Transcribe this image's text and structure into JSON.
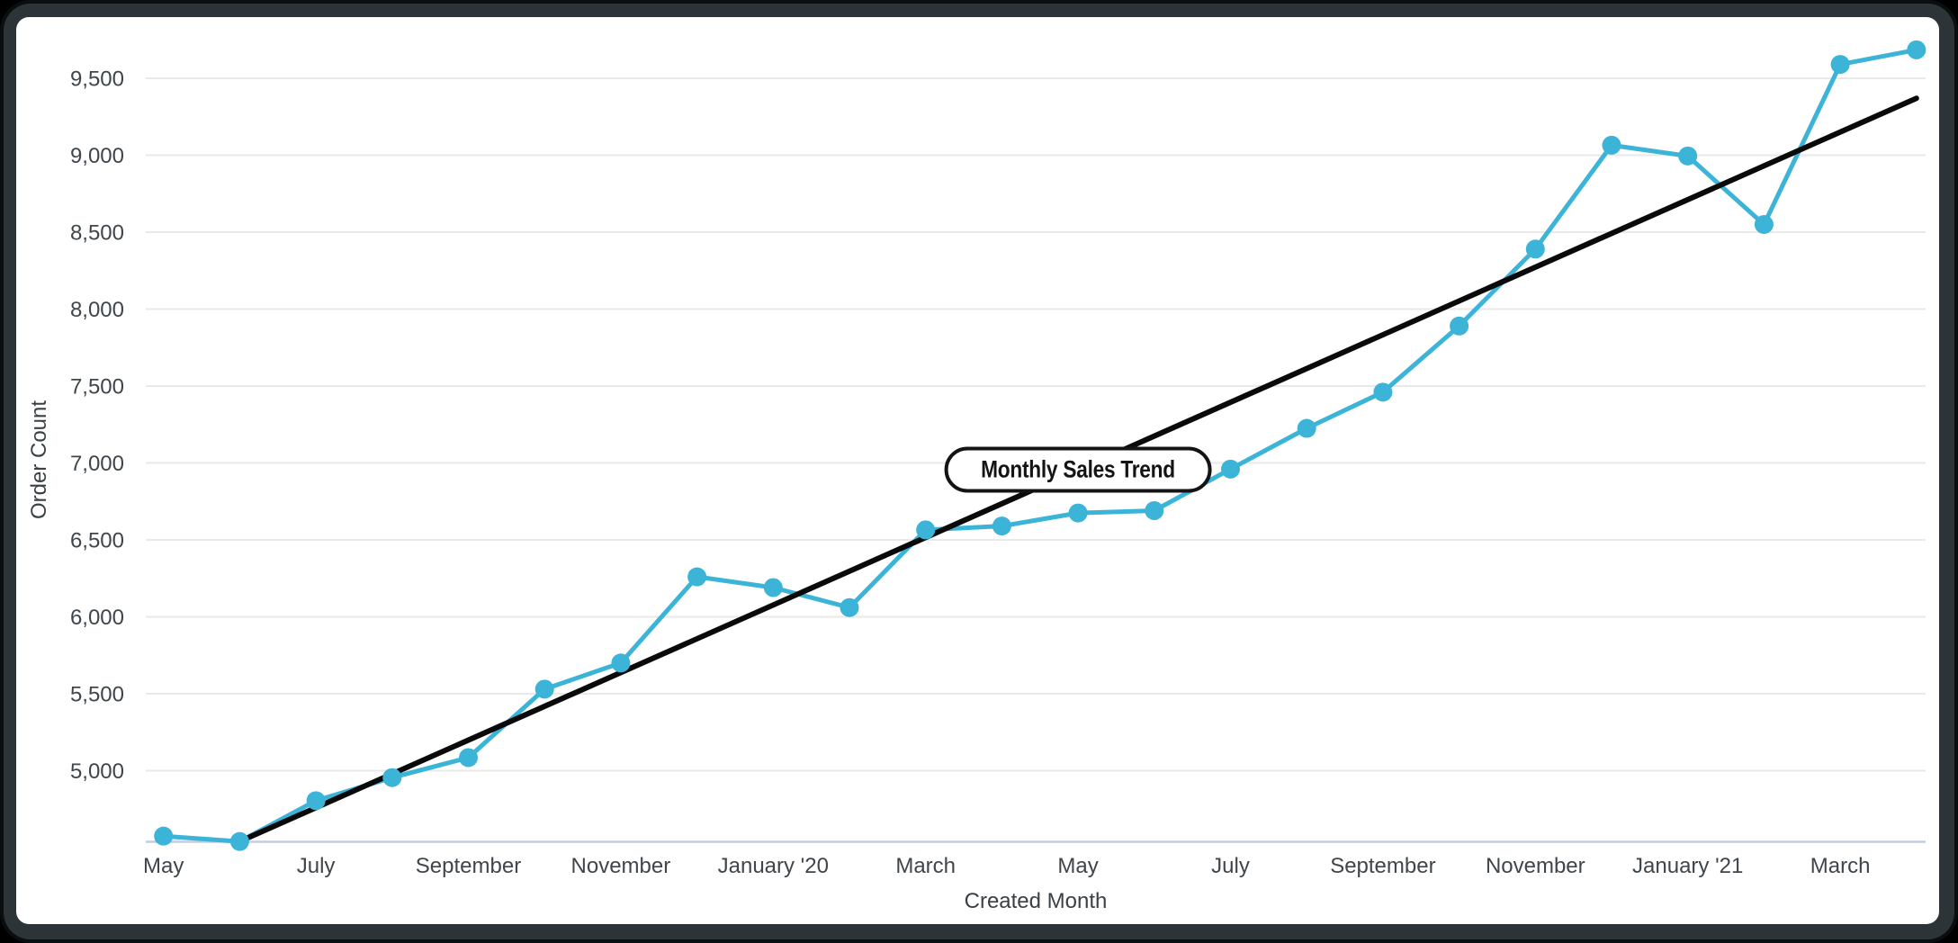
{
  "colors": {
    "series": "#3cb4d8",
    "trend": "#0a0a0a",
    "gridline": "#e9e9e9",
    "axis_baseline": "#c6cbe0",
    "tick_text": "#3f464b",
    "frame": "#2c3437",
    "card_bg": "#ffffff"
  },
  "chart_data": {
    "type": "line",
    "title": "Monthly Sales Trend",
    "xlabel": "Created Month",
    "ylabel": "Order Count",
    "annotation": "Monthly Sales Trend",
    "legend": "none",
    "grid": "horizontal",
    "ylim": [
      4540,
      9750
    ],
    "categories": [
      "May '19",
      "Jun '19",
      "Jul '19",
      "Aug '19",
      "Sep '19",
      "Oct '19",
      "Nov '19",
      "Dec '19",
      "Jan '20",
      "Feb '20",
      "Mar '20",
      "Apr '20",
      "May '20",
      "Jun '20",
      "Jul '20",
      "Aug '20",
      "Sep '20",
      "Oct '20",
      "Nov '20",
      "Dec '20",
      "Jan '21",
      "Feb '21",
      "Mar '21",
      "Apr '21"
    ],
    "series": [
      {
        "name": "Order Count",
        "values": [
          4575,
          4540,
          4805,
          4955,
          5085,
          5530,
          5700,
          6260,
          6190,
          6060,
          6565,
          6590,
          6675,
          6690,
          6960,
          7225,
          7460,
          7890,
          8390,
          9065,
          8995,
          8550,
          9590,
          9685
        ]
      }
    ],
    "trendline": {
      "start_category": "Jun '19",
      "start_value": 4540,
      "end_category": "Apr '21",
      "end_value": 9370
    },
    "x_tick_labels": [
      "May",
      "July",
      "September",
      "November",
      "January '20",
      "March",
      "May",
      "July",
      "September",
      "November",
      "January '21",
      "March"
    ],
    "y_ticks": [
      {
        "value": 5000,
        "label": "5,000"
      },
      {
        "value": 5500,
        "label": "5,500"
      },
      {
        "value": 6000,
        "label": "6,000"
      },
      {
        "value": 6500,
        "label": "6,500"
      },
      {
        "value": 7000,
        "label": "7,000"
      },
      {
        "value": 7500,
        "label": "7,500"
      },
      {
        "value": 8000,
        "label": "8,000"
      },
      {
        "value": 8500,
        "label": "8,500"
      },
      {
        "value": 9000,
        "label": "9,000"
      },
      {
        "value": 9500,
        "label": "9,500"
      }
    ]
  }
}
